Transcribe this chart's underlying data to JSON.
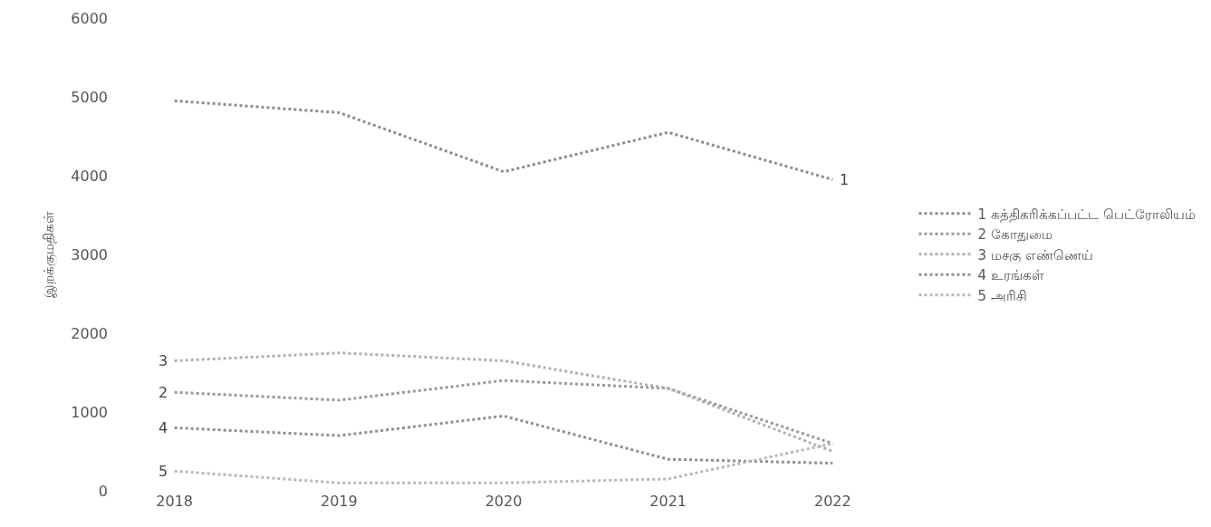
{
  "chart_data": {
    "type": "line",
    "ylabel": "இறக்குமதிகள்",
    "categories": [
      "2018",
      "2019",
      "2020",
      "2021",
      "2022"
    ],
    "ylim": [
      0,
      6000
    ],
    "yticks": [
      0,
      1000,
      2000,
      3000,
      4000,
      5000,
      6000
    ],
    "legend": "right",
    "line_style": "dotted",
    "marker": "none",
    "series": [
      {
        "name": "1 சுத்திகரிக்கப்பட்ட பெட்ரோலியம்",
        "color": "#8c8c8c",
        "values": [
          4950,
          4800,
          4050,
          4550,
          3950
        ]
      },
      {
        "name": "2 கோதுமை",
        "color": "#9a9a9a",
        "values": [
          1250,
          1150,
          1400,
          1300,
          600
        ]
      },
      {
        "name": "3 மசகு எண்ணெய்",
        "color": "#b0b0b0",
        "values": [
          1650,
          1750,
          1650,
          1300,
          500
        ]
      },
      {
        "name": "4 உரங்கள்",
        "color": "#909090",
        "values": [
          800,
          700,
          950,
          400,
          350
        ]
      },
      {
        "name": "5 அரிசி",
        "color": "#b8b8b8",
        "values": [
          250,
          100,
          100,
          150,
          600
        ]
      }
    ],
    "annotations": [
      {
        "text": "1",
        "x": "2022",
        "y": 3950
      },
      {
        "text": "2",
        "x": "2018",
        "y": 1250
      },
      {
        "text": "3",
        "x": "2018",
        "y": 1650
      },
      {
        "text": "4",
        "x": "2018",
        "y": 800
      },
      {
        "text": "5",
        "x": "2018",
        "y": 250
      }
    ]
  }
}
